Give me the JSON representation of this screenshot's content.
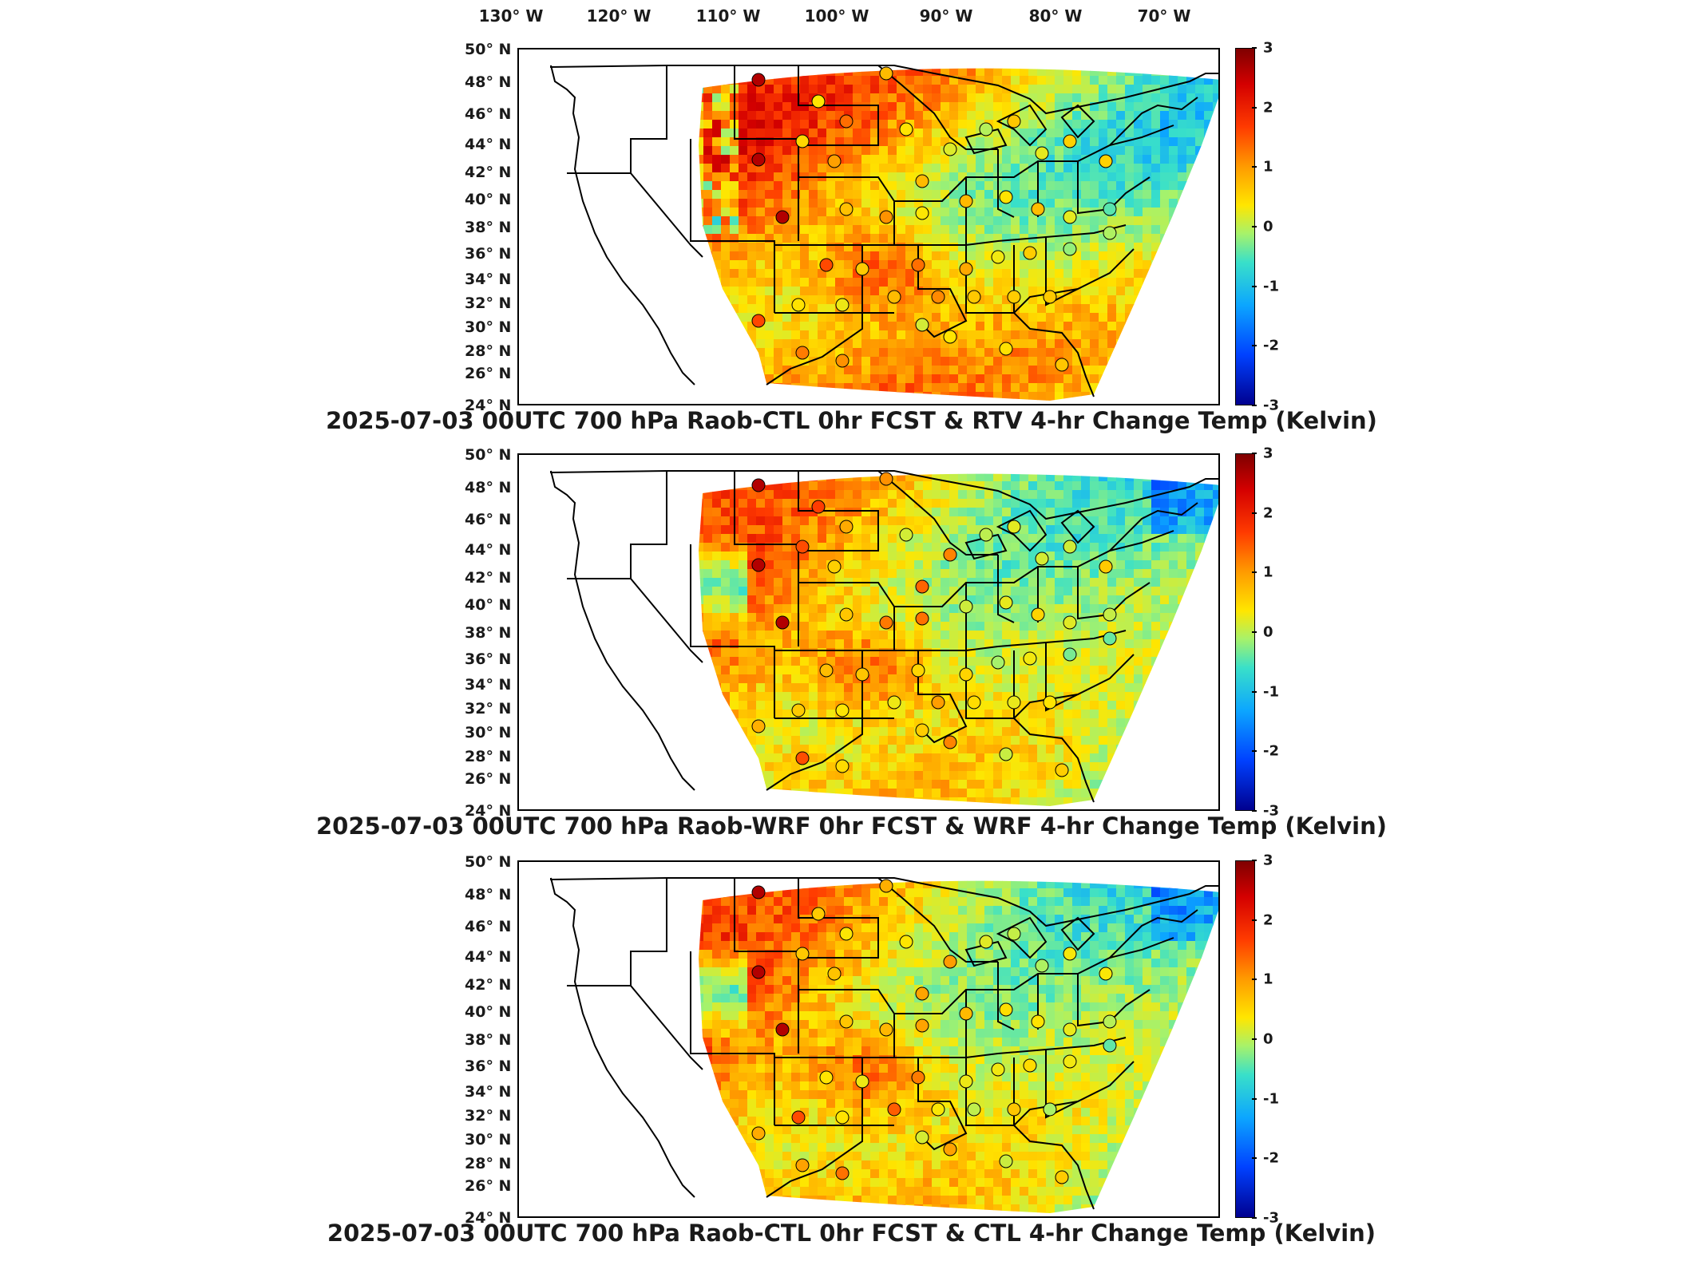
{
  "longitude_labels": [
    "130° W",
    "120° W",
    "110° W",
    "100° W",
    "90° W",
    "80° W",
    "70° W"
  ],
  "latitude_labels": [
    "50° N",
    "48° N",
    "46° N",
    "44° N",
    "42° N",
    "40° N",
    "38° N",
    "36° N",
    "34° N",
    "32° N",
    "30° N",
    "28° N",
    "26° N",
    "24° N"
  ],
  "colorbar": {
    "ticks": [
      "3",
      "2",
      "1",
      "0",
      "-1",
      "-2",
      "-3"
    ],
    "colors": [
      "#7f0000",
      "#d40000",
      "#ff3b00",
      "#ff9a00",
      "#ffe600",
      "#a6f26b",
      "#39e0c9",
      "#0ca6ff",
      "#0041ff",
      "#00008f"
    ]
  },
  "panels": [
    {
      "title": "2025-07-03 00UTC 700 hPa Raob-CTL 0hr FCST & RTV 4-hr Change Temp (Kelvin)"
    },
    {
      "title": "2025-07-03 00UTC 700 hPa Raob-WRF 0hr FCST & WRF 4-hr Change Temp (Kelvin)"
    },
    {
      "title": "2025-07-03 00UTC 700 hPa Raob-CTL 0hr FCST & CTL 4-hr Change Temp (Kelvin)"
    }
  ],
  "map_colors": {
    "west_warm": "#ff8c1a",
    "east_cool": "#4fc6ff",
    "center": "#e6f05a",
    "land_outline": "#000000"
  }
}
